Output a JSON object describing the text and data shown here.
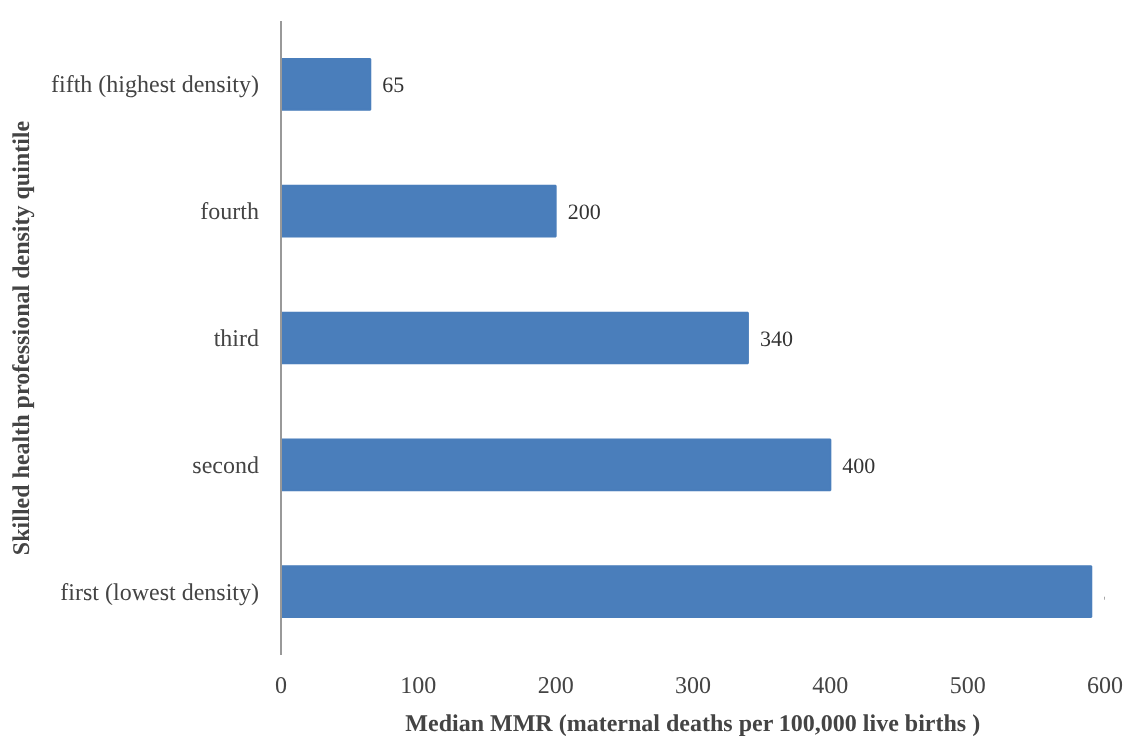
{
  "chart_data": {
    "type": "bar",
    "orientation": "horizontal",
    "xlabel": "Median MMR (maternal deaths per 100,000 live births )",
    "ylabel": "Skilled health professional density quintile",
    "categories": [
      "fifth (highest density)",
      "fourth",
      "third",
      "second",
      "first (lowest density)"
    ],
    "values": [
      65,
      200,
      340,
      400,
      590
    ],
    "color": "#4a7ebb",
    "xlim": [
      0,
      600
    ],
    "xticks": [
      0,
      100,
      200,
      300,
      400,
      500,
      600
    ],
    "data_labels": true
  }
}
